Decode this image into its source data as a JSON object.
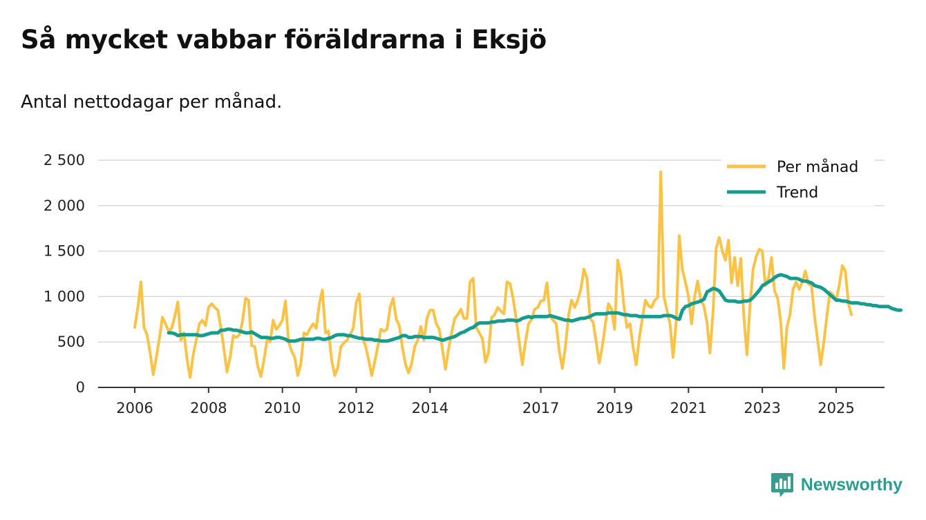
{
  "header": {
    "title": "Så mycket vabbar föräldrarna i Eksjö",
    "subtitle": "Antal nettodagar per månad."
  },
  "brand": {
    "name": "Newsworthy",
    "icon": "newsworthy-logo-icon"
  },
  "chart_data": {
    "type": "line",
    "title": "Så mycket vabbar föräldrarna i Eksjö",
    "subtitle": "Antal nettodagar per månad.",
    "xlabel": "",
    "ylabel": "",
    "xlim": [
      2006,
      2025.5
    ],
    "ylim": [
      0,
      2500
    ],
    "y_ticks": [
      0,
      500,
      1000,
      1500,
      2000,
      2500
    ],
    "y_tick_labels": [
      "0",
      "500",
      "1 000",
      "1 500",
      "2 000",
      "2 500"
    ],
    "x_ticks": [
      2006,
      2008,
      2010,
      2012,
      2014,
      2017,
      2019,
      2021,
      2023,
      2025
    ],
    "x_tick_labels": [
      "2006",
      "2008",
      "2010",
      "2012",
      "2014",
      "2017",
      "2019",
      "2021",
      "2023",
      "2025"
    ],
    "grid": true,
    "legend_position": "top-right",
    "series": [
      {
        "name": "Per månad",
        "color": "#fbc346",
        "x_start": 2006.0,
        "x_step": 0.08333,
        "values": [
          660,
          880,
          1160,
          660,
          580,
          380,
          140,
          330,
          540,
          770,
          700,
          620,
          650,
          780,
          940,
          520,
          600,
          310,
          110,
          360,
          520,
          700,
          740,
          680,
          880,
          920,
          880,
          850,
          660,
          420,
          170,
          330,
          570,
          550,
          580,
          720,
          980,
          960,
          460,
          450,
          230,
          120,
          300,
          520,
          500,
          740,
          640,
          680,
          740,
          950,
          500,
          400,
          330,
          130,
          260,
          600,
          580,
          650,
          700,
          650,
          920,
          1070,
          600,
          620,
          300,
          130,
          220,
          450,
          490,
          520,
          580,
          650,
          930,
          1030,
          540,
          460,
          310,
          130,
          280,
          450,
          640,
          620,
          640,
          880,
          980,
          750,
          680,
          440,
          260,
          160,
          260,
          450,
          520,
          670,
          520,
          760,
          850,
          850,
          700,
          640,
          420,
          200,
          420,
          600,
          760,
          800,
          860,
          760,
          760,
          1160,
          1200,
          660,
          600,
          540,
          280,
          380,
          770,
          800,
          880,
          840,
          810,
          1160,
          1140,
          980,
          750,
          500,
          250,
          500,
          700,
          750,
          860,
          880,
          950,
          960,
          1150,
          780,
          740,
          700,
          400,
          210,
          450,
          790,
          960,
          880,
          960,
          1080,
          1300,
          1200,
          760,
          720,
          500,
          270,
          450,
          700,
          920,
          860,
          640,
          1400,
          1250,
          900,
          660,
          700,
          440,
          250,
          540,
          760,
          960,
          900,
          880,
          960,
          990,
          2370,
          1000,
          850,
          700,
          330,
          720,
          1670,
          1300,
          1160,
          1000,
          700,
          1000,
          1170,
          960,
          900,
          720,
          380,
          840,
          1530,
          1650,
          1500,
          1400,
          1620,
          1150,
          1430,
          1120,
          1420,
          780,
          360,
          900,
          1300,
          1440,
          1520,
          1500,
          1120,
          1200,
          1430,
          1060,
          980,
          720,
          210,
          660,
          800,
          1080,
          1160,
          1080,
          1160,
          1280,
          1140,
          1120,
          780,
          520,
          250,
          500,
          790,
          1050,
          1020,
          960,
          1120,
          1340,
          1280,
          920,
          800
        ]
      },
      {
        "name": "Trend",
        "color": "#169c8e",
        "x_start": 2006.92,
        "x_step": 0.08333,
        "values": [
          600,
          600,
          590,
          570,
          580,
          580,
          580,
          580,
          580,
          580,
          570,
          570,
          580,
          590,
          600,
          600,
          600,
          630,
          630,
          640,
          640,
          630,
          630,
          620,
          610,
          600,
          600,
          610,
          590,
          570,
          550,
          550,
          550,
          540,
          540,
          550,
          550,
          540,
          530,
          510,
          510,
          510,
          520,
          530,
          530,
          530,
          530,
          530,
          540,
          540,
          530,
          530,
          540,
          550,
          570,
          580,
          580,
          580,
          570,
          570,
          560,
          550,
          540,
          540,
          530,
          530,
          530,
          520,
          520,
          510,
          510,
          510,
          520,
          530,
          540,
          550,
          570,
          570,
          550,
          550,
          560,
          560,
          560,
          550,
          550,
          550,
          550,
          540,
          530,
          520,
          530,
          540,
          550,
          560,
          580,
          600,
          610,
          630,
          650,
          660,
          690,
          710,
          710,
          710,
          710,
          720,
          720,
          730,
          730,
          730,
          740,
          740,
          740,
          730,
          740,
          760,
          770,
          780,
          770,
          780,
          780,
          780,
          780,
          780,
          790,
          780,
          770,
          760,
          750,
          740,
          740,
          730,
          740,
          750,
          760,
          760,
          770,
          780,
          800,
          810,
          810,
          810,
          810,
          820,
          820,
          820,
          820,
          810,
          800,
          800,
          790,
          790,
          790,
          780,
          780,
          780,
          780,
          780,
          780,
          780,
          780,
          790,
          790,
          790,
          780,
          760,
          750,
          850,
          890,
          900,
          920,
          930,
          940,
          950,
          970,
          1050,
          1070,
          1090,
          1080,
          1060,
          1010,
          960,
          950,
          950,
          950,
          940,
          940,
          950,
          950,
          960,
          990,
          1030,
          1070,
          1120,
          1140,
          1160,
          1180,
          1210,
          1230,
          1240,
          1230,
          1220,
          1200,
          1200,
          1200,
          1190,
          1170,
          1170,
          1160,
          1150,
          1120,
          1110,
          1100,
          1080,
          1050,
          1020,
          990,
          960,
          960,
          950,
          950,
          940,
          930,
          930,
          930,
          920,
          920,
          910,
          910,
          900,
          900,
          890,
          890,
          890,
          890,
          870,
          860,
          850,
          850
        ]
      }
    ]
  }
}
